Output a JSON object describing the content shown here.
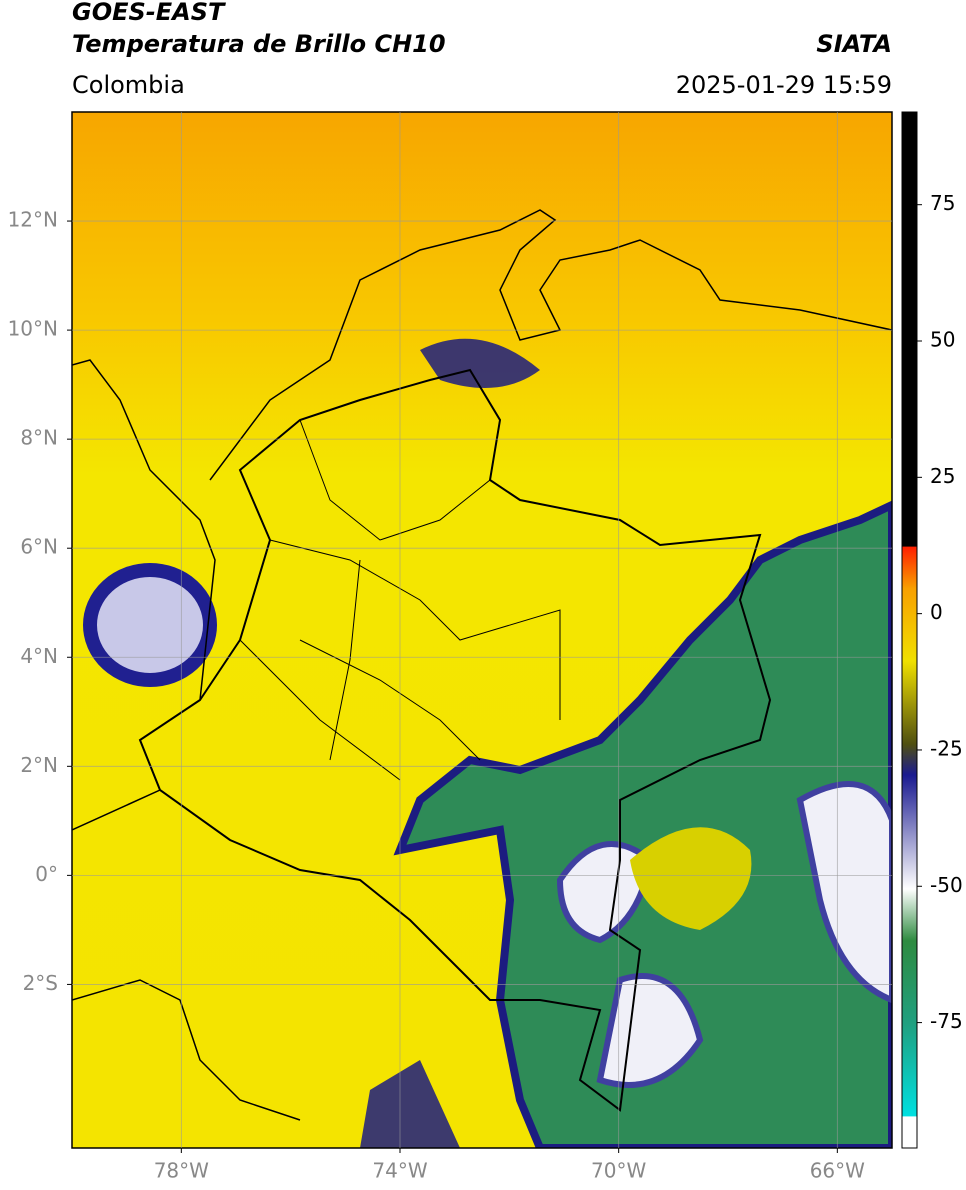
{
  "header": {
    "title": "GOES-EAST",
    "product": "Temperatura de Brillo CH10",
    "source": "SIATA",
    "region": "Colombia",
    "datetime": "2025-01-29 15:59"
  },
  "map": {
    "xlim": [
      -80,
      -65
    ],
    "ylim": [
      -5,
      14
    ],
    "xticks": [
      {
        "value": -78,
        "label": "78°W"
      },
      {
        "value": -74,
        "label": "74°W"
      },
      {
        "value": -70,
        "label": "70°W"
      },
      {
        "value": -66,
        "label": "66°W"
      }
    ],
    "yticks": [
      {
        "value": 12,
        "label": "12°N"
      },
      {
        "value": 10,
        "label": "10°N"
      },
      {
        "value": 8,
        "label": "8°N"
      },
      {
        "value": 6,
        "label": "6°N"
      },
      {
        "value": 4,
        "label": "4°N"
      },
      {
        "value": 2,
        "label": "2°N"
      },
      {
        "value": 0,
        "label": "0°"
      },
      {
        "value": -2,
        "label": "2°S"
      }
    ],
    "grid": true
  },
  "colorbar": {
    "lim": [
      -98,
      92
    ],
    "ticks": [
      75,
      50,
      25,
      0,
      -25,
      -50,
      -75
    ]
  }
}
